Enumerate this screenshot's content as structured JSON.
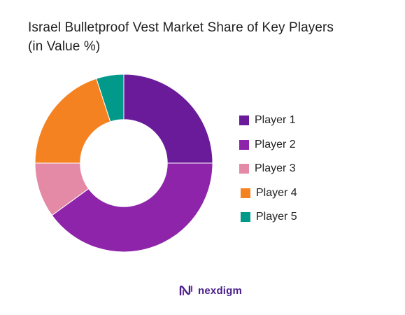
{
  "chart_data": {
    "type": "pie",
    "title_lines": [
      "Israel Bulletproof Vest Market Share of Key Players",
      "(in Value %)"
    ],
    "inner_radius_ratio": 0.49,
    "start_angle_deg": 0,
    "slices": [
      {
        "label": "Player 1",
        "value": 25,
        "color": "#6a1b9a"
      },
      {
        "label": "Player 2",
        "value": 40,
        "color": "#8e24aa"
      },
      {
        "label": "Player 3",
        "value": 10,
        "color": "#e48aa6"
      },
      {
        "label": "Player 4",
        "value": 20,
        "color": "#f58220"
      },
      {
        "label": "Player 5",
        "value": 5,
        "color": "#00998a"
      }
    ],
    "legend_position": "right"
  },
  "brand": {
    "name": "nexdigm",
    "color": "#4a1f8a"
  }
}
